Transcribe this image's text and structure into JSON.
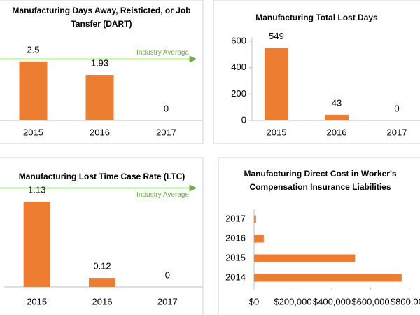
{
  "chart_data": [
    {
      "type": "bar",
      "title": "Manufacturing Days Away, Reisticted, or Job Tansfer (DART)",
      "categories": [
        "2015",
        "2016",
        "2017"
      ],
      "values": [
        2.5,
        1.93,
        0
      ],
      "color": "#ed7d31",
      "ylim": [
        0,
        3
      ],
      "annotation": {
        "label": "Industry Average",
        "value": 2.6,
        "color": "#70ad47"
      }
    },
    {
      "type": "bar",
      "title": "Manufacturing  Total Lost Days",
      "categories": [
        "2015",
        "2016",
        "2017"
      ],
      "values": [
        549,
        43,
        0
      ],
      "color": "#ed7d31",
      "ylim": [
        0,
        600
      ],
      "yticks": [
        0,
        200,
        400,
        600
      ]
    },
    {
      "type": "bar",
      "title": "Manufacturing Lost Time Case Rate (LTC)",
      "categories": [
        "2015",
        "2016",
        "2017"
      ],
      "values": [
        1.13,
        0.12,
        0
      ],
      "color": "#ed7d31",
      "ylim": [
        0,
        1.5
      ],
      "annotation": {
        "label": "Industry Average",
        "value": 1.31,
        "color": "#70ad47"
      }
    },
    {
      "type": "barh",
      "title": "Manufacturing Direct Cost in Worker's Compensation Insurance Liabilities",
      "categories": [
        "2017",
        "2016",
        "2015",
        "2014"
      ],
      "values": [
        10000,
        50000,
        520000,
        760000
      ],
      "color": "#ed7d31",
      "xlim": [
        0,
        800000
      ],
      "xticks": [
        {
          "value": 0,
          "label": "$0"
        },
        {
          "value": 200000,
          "label": "$200,000"
        },
        {
          "value": 400000,
          "label": "$400,000"
        },
        {
          "value": 600000,
          "label": "$600,000"
        },
        {
          "value": 800000,
          "label": "$800,000"
        }
      ]
    }
  ]
}
